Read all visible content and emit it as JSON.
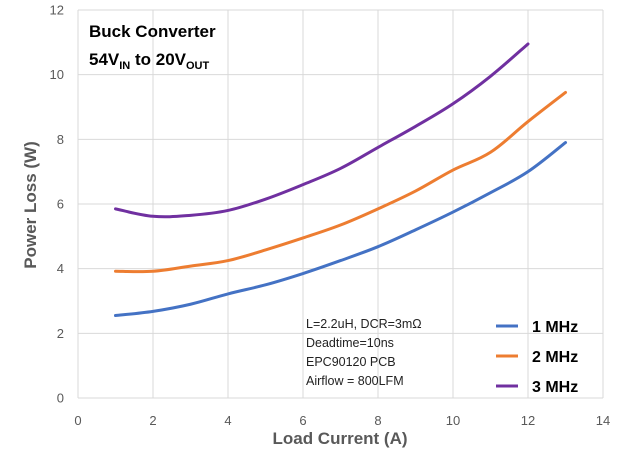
{
  "chart_data": {
    "type": "line",
    "title_line1": "Buck Converter",
    "title_line2": {
      "a": "54V",
      "a_sub": "IN",
      "b": " to 20V",
      "b_sub": "OUT"
    },
    "xlabel": "Load Current (A)",
    "ylabel": "Power Loss (W)",
    "xlim": [
      0,
      14
    ],
    "ylim": [
      0,
      12
    ],
    "xticks": [
      0,
      2,
      4,
      6,
      8,
      10,
      12,
      14
    ],
    "yticks": [
      0,
      2,
      4,
      6,
      8,
      10,
      12
    ],
    "grid": true,
    "legend_position": "bottom-right",
    "notes": [
      "L=2.2uH, DCR=3mΩ",
      "Deadtime=10ns",
      "EPC90120 PCB",
      "Airflow = 800LFM"
    ],
    "series": [
      {
        "name": "1 MHz",
        "color": "#4472C4",
        "x": [
          1,
          2,
          3,
          4,
          5,
          6,
          7,
          8,
          9,
          10,
          11,
          12,
          13
        ],
        "y": [
          2.55,
          2.68,
          2.9,
          3.22,
          3.5,
          3.85,
          4.25,
          4.68,
          5.2,
          5.75,
          6.35,
          7.0,
          7.9
        ]
      },
      {
        "name": "2 MHz",
        "color": "#ED7D31",
        "x": [
          1,
          2,
          3,
          4,
          5,
          6,
          7,
          8,
          9,
          10,
          11,
          12,
          13
        ],
        "y": [
          3.92,
          3.92,
          4.08,
          4.25,
          4.58,
          4.95,
          5.35,
          5.85,
          6.4,
          7.05,
          7.6,
          8.55,
          9.45
        ]
      },
      {
        "name": "3 MHz",
        "color": "#7030A0",
        "x": [
          1,
          2,
          3,
          4,
          5,
          6,
          7,
          8,
          9,
          10,
          11,
          12
        ],
        "y": [
          5.85,
          5.62,
          5.65,
          5.8,
          6.15,
          6.6,
          7.1,
          7.75,
          8.4,
          9.1,
          9.95,
          10.95
        ]
      }
    ]
  }
}
